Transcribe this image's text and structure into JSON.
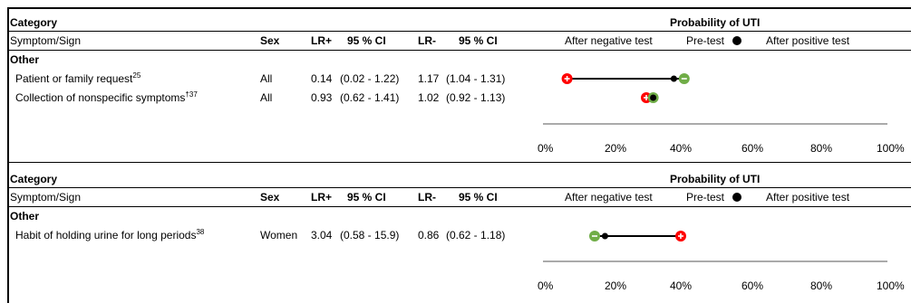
{
  "panels": [
    {
      "header": {
        "category": "Category",
        "symptom_sign": "Symptom/Sign",
        "sex": "Sex",
        "lr_pos": "LR+",
        "ci1": "95 % CI",
        "lr_neg": "LR-",
        "ci2": "95 % CI",
        "probability_title": "Probability of UTI",
        "after_negative": "After negative test",
        "pre_test": "Pre-test",
        "after_positive": "After positive test"
      },
      "group": "Other",
      "rows": [
        {
          "label": "Patient or family request",
          "ref": "25",
          "sex": "All",
          "lr_pos": "0.14",
          "ci_pos": "(0.02 - 1.22)",
          "lr_neg": "1.17",
          "ci_neg": "(1.04 - 1.31)"
        },
        {
          "label": "Collection of nonspecific symptoms",
          "ref": "†37",
          "sex": "All",
          "lr_pos": "0.93",
          "ci_pos": "(0.62 - 1.41)",
          "lr_neg": "1.02",
          "ci_neg": "(0.92 - 1.13)"
        }
      ],
      "axis_ticks": [
        "0%",
        "20%",
        "40%",
        "60%",
        "80%",
        "100%"
      ]
    },
    {
      "header": {
        "category": "Category",
        "symptom_sign": "Symptom/Sign",
        "sex": "Sex",
        "lr_pos": "LR+",
        "ci1": "95 % CI",
        "lr_neg": "LR-",
        "ci2": "95 % CI",
        "probability_title": "Probability of UTI",
        "after_negative": "After negative test",
        "pre_test": "Pre-test",
        "after_positive": "After positive test"
      },
      "group": "Other",
      "rows": [
        {
          "label": "Habit of holding urine for long periods",
          "ref": "38",
          "sex": "Women",
          "lr_pos": "3.04",
          "ci_pos": "(0.58 - 15.9)",
          "lr_neg": "0.86",
          "ci_neg": "(0.62 - 1.18)"
        }
      ],
      "axis_ticks": [
        "0%",
        "20%",
        "40%",
        "60%",
        "80%",
        "100%"
      ]
    }
  ],
  "chart_data": {
    "type": "scatter",
    "xlim": [
      0,
      100
    ],
    "series": [
      {
        "name": "Pre-test",
        "color": "#000000"
      },
      {
        "name": "After negative test",
        "color": "#70ad47"
      },
      {
        "name": "After positive test",
        "color": "#ff0000"
      }
    ],
    "points": [
      {
        "panel": 0,
        "row": 0,
        "pre": 38,
        "neg": 41,
        "pos": 7
      },
      {
        "panel": 0,
        "row": 1,
        "pre": 32,
        "neg": 32,
        "pos": 30
      },
      {
        "panel": 1,
        "row": 0,
        "pre": 18,
        "neg": 15,
        "pos": 40
      }
    ]
  }
}
